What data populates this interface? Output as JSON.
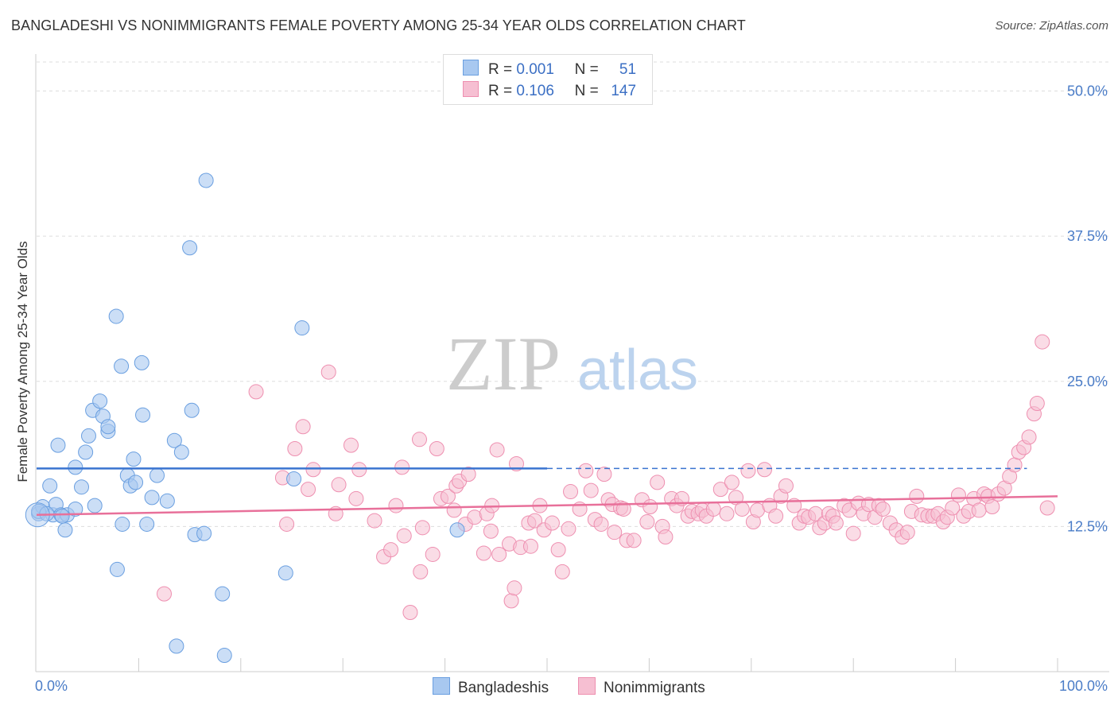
{
  "title": "BANGLADESHI VS NONIMMIGRANTS FEMALE POVERTY AMONG 25-34 YEAR OLDS CORRELATION CHART",
  "source": "Source: ZipAtlas.com",
  "watermark": {
    "zip": "ZIP",
    "atlas": "atlas"
  },
  "legend": {
    "rows": [
      {
        "r_label": "R =",
        "r_value": "0.001",
        "n_label": "N =",
        "n_value": "51"
      },
      {
        "r_label": "R =",
        "r_value": "0.106",
        "n_label": "N =",
        "n_value": "147"
      }
    ]
  },
  "bottom_legend": {
    "series1": "Bangladeshis",
    "series2": "Nonimmigrants"
  },
  "colors": {
    "blue_fill": "#a8c8f0",
    "blue_stroke": "#6a9fe0",
    "blue_line": "#3a74d0",
    "pink_fill": "#f6bfd2",
    "pink_stroke": "#ee8fb0",
    "pink_line": "#e8709a",
    "axis_text": "#4a7cc7",
    "grid": "#dddddd"
  },
  "chart_data": {
    "type": "scatter",
    "title": "BANGLADESHI VS NONIMMIGRANTS FEMALE POVERTY AMONG 25-34 YEAR OLDS CORRELATION CHART",
    "xlabel": "",
    "ylabel": "Female Poverty Among 25-34 Year Olds",
    "xlim": [
      0,
      100
    ],
    "ylim": [
      0,
      52.5
    ],
    "x_tick_labels": [
      "0.0%",
      "100.0%"
    ],
    "y_ticks": [
      12.5,
      25.0,
      37.5,
      50.0
    ],
    "y_tick_labels": [
      "12.5%",
      "25.0%",
      "37.5%",
      "50.0%"
    ],
    "grid": true,
    "legend_position": "top-center",
    "series": [
      {
        "name": "Bangladeshis",
        "trend": {
          "x": [
            0,
            50
          ],
          "y": [
            17.5,
            17.5
          ],
          "dashed_to": 97
        },
        "points": [
          [
            0.2,
            13.6
          ],
          [
            0.6,
            14.2
          ],
          [
            1.3,
            16.0
          ],
          [
            1.6,
            13.5
          ],
          [
            1.9,
            14.4
          ],
          [
            2.1,
            19.5
          ],
          [
            2.4,
            13.5
          ],
          [
            2.8,
            12.2
          ],
          [
            3.0,
            13.5
          ],
          [
            3.8,
            17.6
          ],
          [
            3.8,
            14.0
          ],
          [
            4.4,
            15.9
          ],
          [
            4.8,
            18.9
          ],
          [
            5.1,
            20.3
          ],
          [
            5.5,
            22.5
          ],
          [
            5.7,
            14.3
          ],
          [
            6.2,
            23.3
          ],
          [
            6.5,
            22.0
          ],
          [
            7.0,
            20.7
          ],
          [
            7.0,
            21.1
          ],
          [
            7.8,
            30.6
          ],
          [
            7.9,
            8.8
          ],
          [
            8.3,
            26.3
          ],
          [
            8.4,
            12.7
          ],
          [
            8.9,
            16.9
          ],
          [
            9.2,
            16.0
          ],
          [
            9.5,
            18.3
          ],
          [
            9.7,
            16.3
          ],
          [
            10.3,
            26.6
          ],
          [
            10.4,
            22.1
          ],
          [
            10.8,
            12.7
          ],
          [
            11.3,
            15.0
          ],
          [
            11.8,
            16.9
          ],
          [
            12.8,
            14.7
          ],
          [
            13.5,
            19.9
          ],
          [
            13.7,
            2.2
          ],
          [
            14.2,
            18.9
          ],
          [
            15.0,
            36.5
          ],
          [
            15.2,
            22.5
          ],
          [
            15.5,
            11.8
          ],
          [
            16.4,
            11.9
          ],
          [
            16.6,
            42.3
          ],
          [
            18.2,
            6.7
          ],
          [
            18.4,
            1.4
          ],
          [
            24.4,
            8.5
          ],
          [
            25.2,
            16.6
          ],
          [
            26.0,
            29.6
          ],
          [
            41.2,
            12.2
          ],
          [
            0.2,
            13.8
          ],
          [
            1.0,
            13.6
          ],
          [
            2.5,
            13.4
          ]
        ]
      },
      {
        "name": "Nonimmigrants",
        "trend": {
          "x": [
            0,
            100
          ],
          "y": [
            13.5,
            15.1
          ]
        },
        "points": [
          [
            12.5,
            6.7
          ],
          [
            21.5,
            24.1
          ],
          [
            24.1,
            16.7
          ],
          [
            24.5,
            12.7
          ],
          [
            25.3,
            19.2
          ],
          [
            26.1,
            21.1
          ],
          [
            26.6,
            15.7
          ],
          [
            27.1,
            17.4
          ],
          [
            28.6,
            25.8
          ],
          [
            29.3,
            13.6
          ],
          [
            29.6,
            16.1
          ],
          [
            30.8,
            19.5
          ],
          [
            31.3,
            14.9
          ],
          [
            31.6,
            17.4
          ],
          [
            33.1,
            13.0
          ],
          [
            34.0,
            9.9
          ],
          [
            34.7,
            10.5
          ],
          [
            35.2,
            14.3
          ],
          [
            35.8,
            17.6
          ],
          [
            36.0,
            11.7
          ],
          [
            36.6,
            5.1
          ],
          [
            37.5,
            20.0
          ],
          [
            37.6,
            8.6
          ],
          [
            37.8,
            12.4
          ],
          [
            38.8,
            10.1
          ],
          [
            39.2,
            19.2
          ],
          [
            39.6,
            14.9
          ],
          [
            40.3,
            15.1
          ],
          [
            40.9,
            13.9
          ],
          [
            41.1,
            16.0
          ],
          [
            41.4,
            16.4
          ],
          [
            42.0,
            12.7
          ],
          [
            42.3,
            17.0
          ],
          [
            42.9,
            13.3
          ],
          [
            43.8,
            10.2
          ],
          [
            44.1,
            13.6
          ],
          [
            44.5,
            12.1
          ],
          [
            44.6,
            14.3
          ],
          [
            45.1,
            19.1
          ],
          [
            45.3,
            10.1
          ],
          [
            46.3,
            11.0
          ],
          [
            46.5,
            6.1
          ],
          [
            46.8,
            7.2
          ],
          [
            47.0,
            17.9
          ],
          [
            47.4,
            10.7
          ],
          [
            48.2,
            12.8
          ],
          [
            48.4,
            10.8
          ],
          [
            48.8,
            13.0
          ],
          [
            49.3,
            14.3
          ],
          [
            49.7,
            12.2
          ],
          [
            50.5,
            12.8
          ],
          [
            51.1,
            10.5
          ],
          [
            51.5,
            8.6
          ],
          [
            52.1,
            12.3
          ],
          [
            52.3,
            15.5
          ],
          [
            53.2,
            14.0
          ],
          [
            53.8,
            17.3
          ],
          [
            54.3,
            15.6
          ],
          [
            54.7,
            13.1
          ],
          [
            55.3,
            12.7
          ],
          [
            55.6,
            17.0
          ],
          [
            56.0,
            14.8
          ],
          [
            56.4,
            14.4
          ],
          [
            56.6,
            12.0
          ],
          [
            57.2,
            14.1
          ],
          [
            57.5,
            14.0
          ],
          [
            57.8,
            11.3
          ],
          [
            58.5,
            11.3
          ],
          [
            59.3,
            14.8
          ],
          [
            59.8,
            12.9
          ],
          [
            60.1,
            14.2
          ],
          [
            60.8,
            16.3
          ],
          [
            61.3,
            12.5
          ],
          [
            61.6,
            11.6
          ],
          [
            62.2,
            14.9
          ],
          [
            62.7,
            14.3
          ],
          [
            63.2,
            14.9
          ],
          [
            63.8,
            13.4
          ],
          [
            64.2,
            13.8
          ],
          [
            64.8,
            13.6
          ],
          [
            65.2,
            13.9
          ],
          [
            65.6,
            13.4
          ],
          [
            66.3,
            14.0
          ],
          [
            67.0,
            15.7
          ],
          [
            67.6,
            13.6
          ],
          [
            68.1,
            16.3
          ],
          [
            68.5,
            15.0
          ],
          [
            69.1,
            14.0
          ],
          [
            69.7,
            17.3
          ],
          [
            70.2,
            12.9
          ],
          [
            70.6,
            13.9
          ],
          [
            71.3,
            17.4
          ],
          [
            71.8,
            14.3
          ],
          [
            72.4,
            13.4
          ],
          [
            72.9,
            15.1
          ],
          [
            73.4,
            16.0
          ],
          [
            74.2,
            14.3
          ],
          [
            74.7,
            12.8
          ],
          [
            75.2,
            13.4
          ],
          [
            75.6,
            13.3
          ],
          [
            76.3,
            13.6
          ],
          [
            76.7,
            12.4
          ],
          [
            77.2,
            12.8
          ],
          [
            77.6,
            13.6
          ],
          [
            78.0,
            13.4
          ],
          [
            78.3,
            12.8
          ],
          [
            79.1,
            14.3
          ],
          [
            79.6,
            13.9
          ],
          [
            80.0,
            11.9
          ],
          [
            80.5,
            14.5
          ],
          [
            81.0,
            13.6
          ],
          [
            81.5,
            14.4
          ],
          [
            82.1,
            13.3
          ],
          [
            82.5,
            14.3
          ],
          [
            82.9,
            14.0
          ],
          [
            83.6,
            12.8
          ],
          [
            84.2,
            12.2
          ],
          [
            84.8,
            11.6
          ],
          [
            85.3,
            12.0
          ],
          [
            85.7,
            13.8
          ],
          [
            86.2,
            15.1
          ],
          [
            86.7,
            13.5
          ],
          [
            87.3,
            13.4
          ],
          [
            87.8,
            13.4
          ],
          [
            88.3,
            13.6
          ],
          [
            88.8,
            12.9
          ],
          [
            89.2,
            13.3
          ],
          [
            89.7,
            14.1
          ],
          [
            90.3,
            15.2
          ],
          [
            90.8,
            13.4
          ],
          [
            91.3,
            13.8
          ],
          [
            91.8,
            14.9
          ],
          [
            92.3,
            13.9
          ],
          [
            92.8,
            15.3
          ],
          [
            93.2,
            15.1
          ],
          [
            93.6,
            14.2
          ],
          [
            94.2,
            15.3
          ],
          [
            94.8,
            15.8
          ],
          [
            95.3,
            16.8
          ],
          [
            95.8,
            17.8
          ],
          [
            96.2,
            18.9
          ],
          [
            96.7,
            19.3
          ],
          [
            97.2,
            20.2
          ],
          [
            97.7,
            22.2
          ],
          [
            98.0,
            23.1
          ],
          [
            98.5,
            28.4
          ],
          [
            99.0,
            14.1
          ]
        ]
      }
    ]
  }
}
